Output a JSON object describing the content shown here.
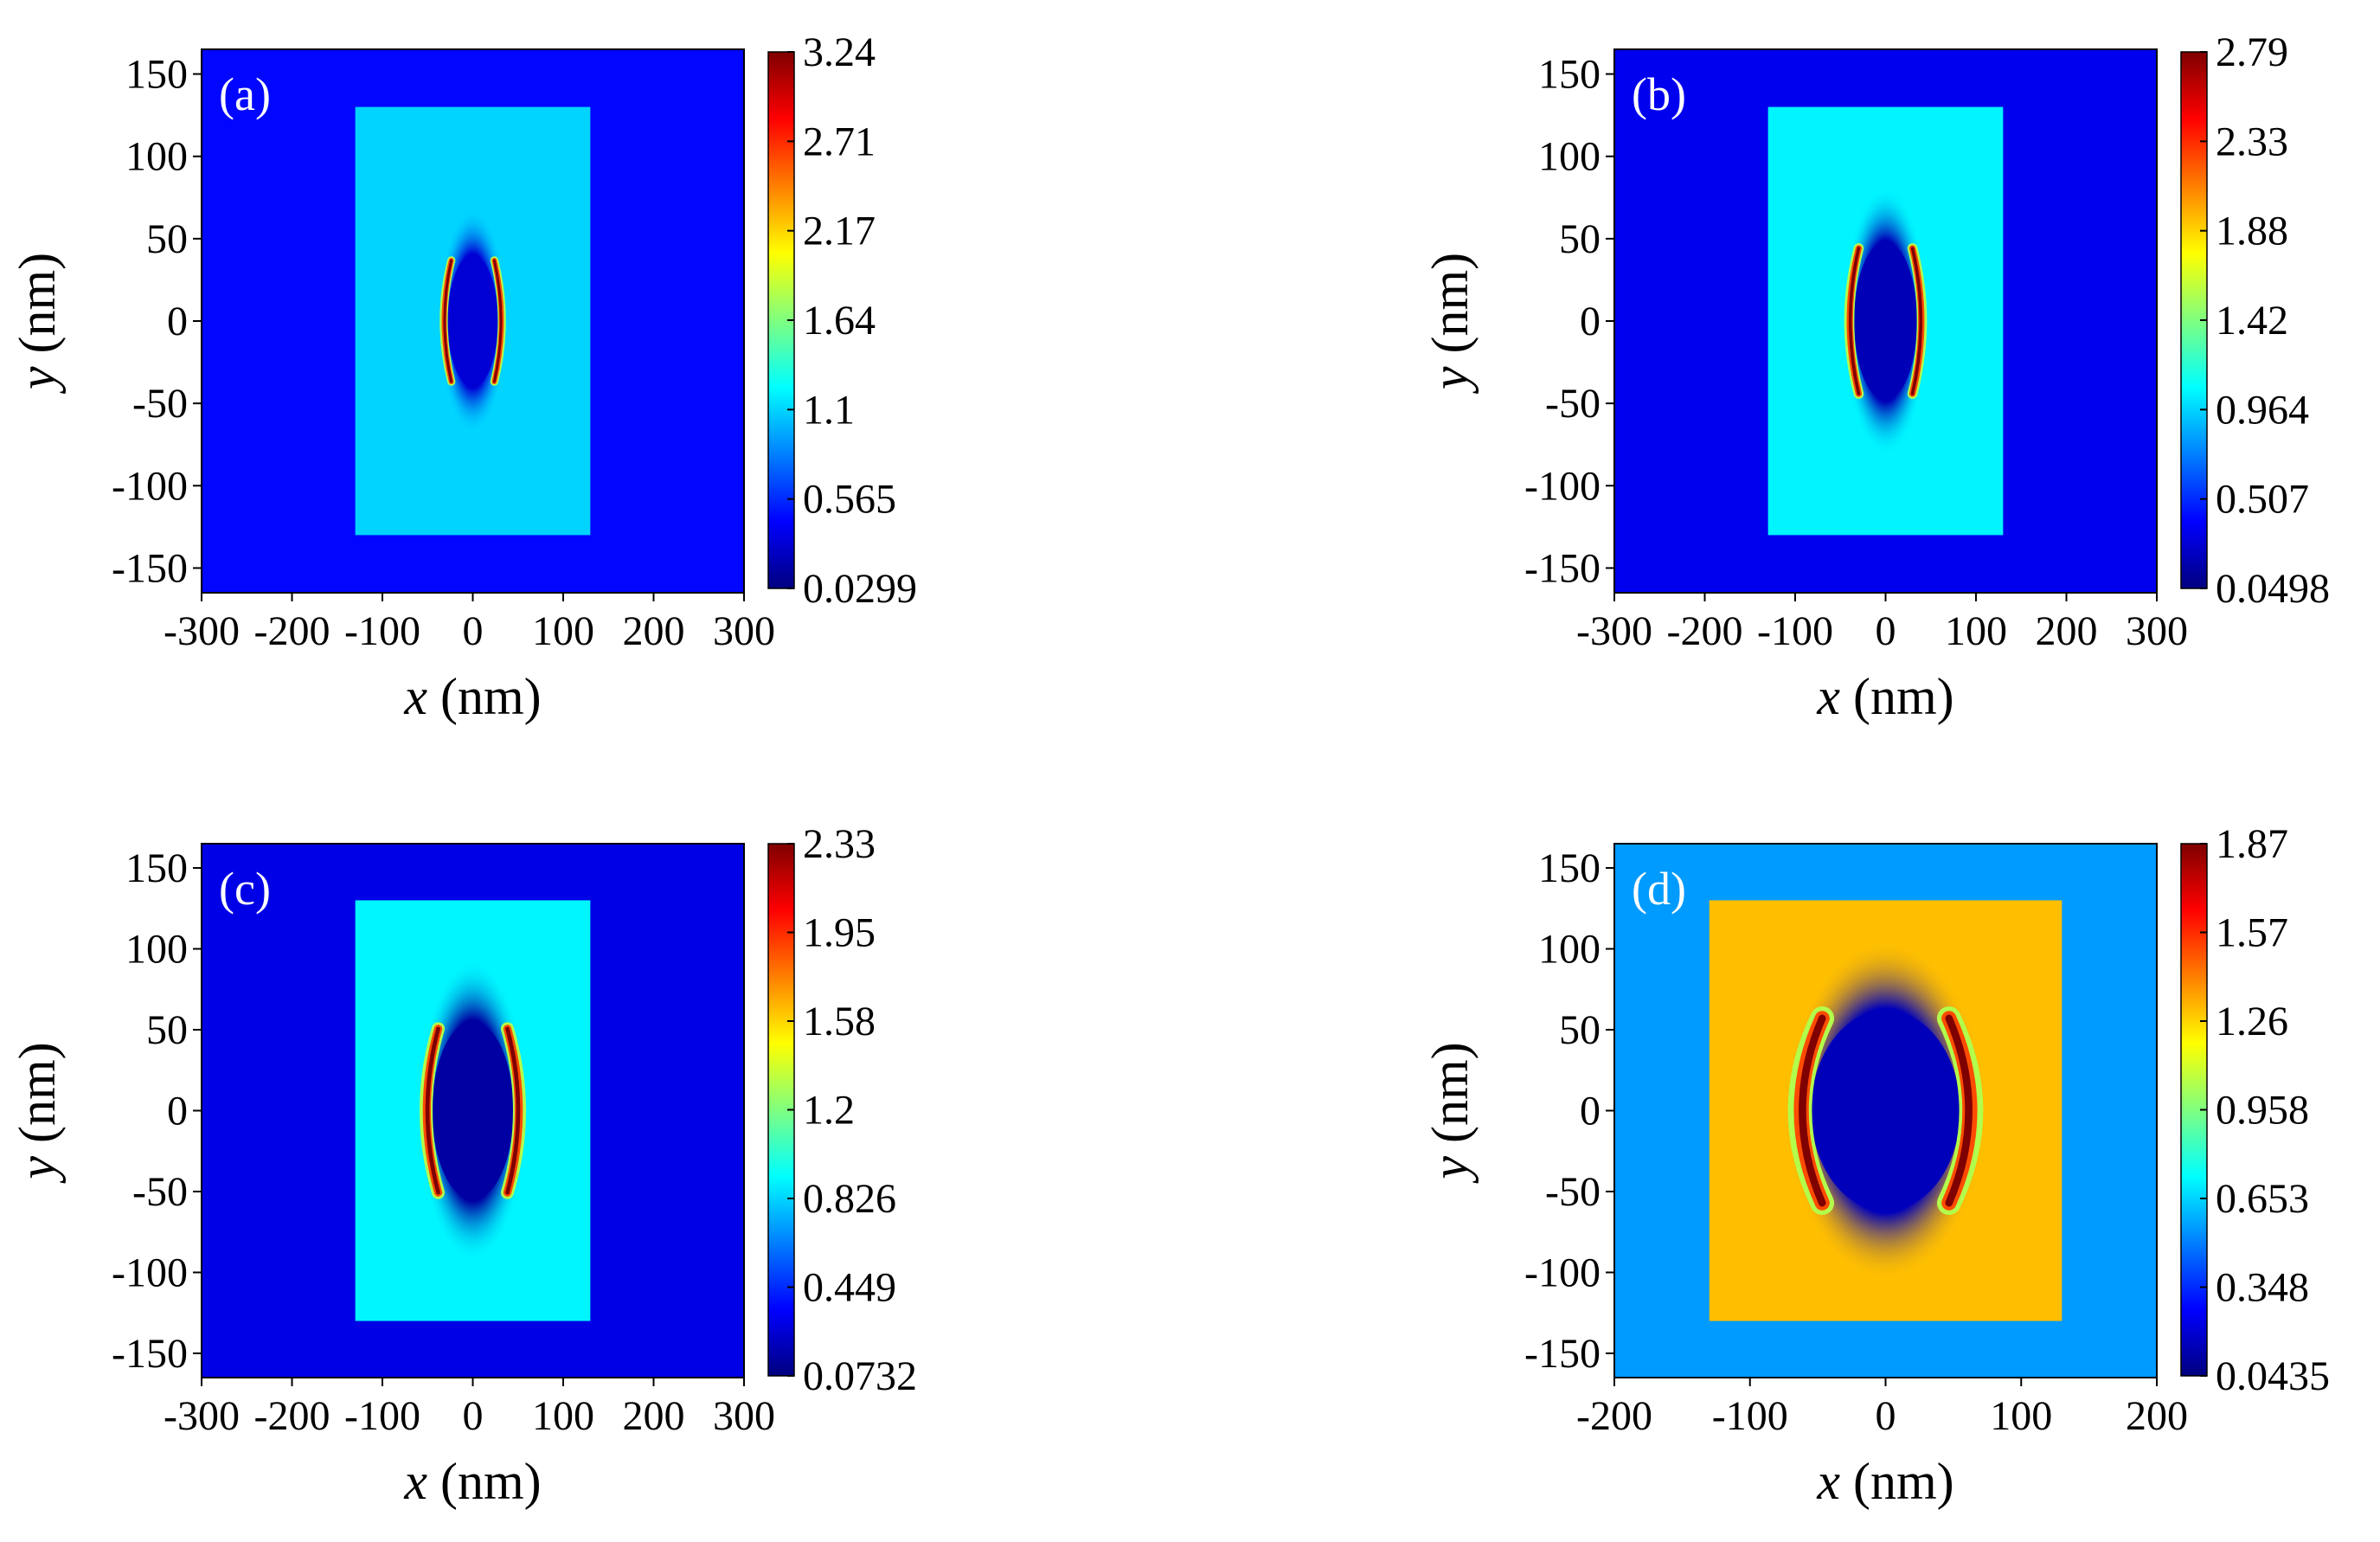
{
  "colors": {
    "background": "#ffffff",
    "colormap": [
      "#00007f",
      "#0000ff",
      "#007fff",
      "#00ffff",
      "#7fff7f",
      "#ffff00",
      "#ff7f00",
      "#ff0000",
      "#7f0000"
    ]
  },
  "chart_data": [
    {
      "type": "heatmap",
      "panel_label": "(a)",
      "xlabel_var": "x",
      "ylabel_var": "y",
      "unit": "(nm)",
      "xlim": [
        -300,
        300
      ],
      "ylim": [
        -165,
        165
      ],
      "xticks": [
        "-300",
        "-200",
        "-100",
        "0",
        "100",
        "200",
        "300"
      ],
      "xtick_values": [
        -300,
        -200,
        -100,
        0,
        100,
        200,
        300
      ],
      "yticks": [
        "150",
        "100",
        "50",
        "0",
        "-50",
        "-100",
        "-150"
      ],
      "ytick_values": [
        150,
        100,
        50,
        0,
        -50,
        -100,
        -150
      ],
      "colorbar_ticks": [
        "3.24",
        "2.71",
        "2.17",
        "1.64",
        "1.1",
        "0.565",
        "0.0299"
      ],
      "colorbar_range": [
        0.0299,
        3.24
      ],
      "rect_half_width": 130,
      "rect_half_height": 130,
      "hole_rx": 28,
      "hole_ry": 40,
      "outside_value": 0.45,
      "rect_value": 1.1,
      "hole_value": 0.3,
      "hotspot_value": 3.24
    },
    {
      "type": "heatmap",
      "panel_label": "(b)",
      "xlabel_var": "x",
      "ylabel_var": "y",
      "unit": "(nm)",
      "xlim": [
        -300,
        300
      ],
      "ylim": [
        -165,
        165
      ],
      "xticks": [
        "-300",
        "-200",
        "-100",
        "0",
        "100",
        "200",
        "300"
      ],
      "xtick_values": [
        -300,
        -200,
        -100,
        0,
        100,
        200,
        300
      ],
      "yticks": [
        "150",
        "100",
        "50",
        "0",
        "-50",
        "-100",
        "-150"
      ],
      "ytick_values": [
        150,
        100,
        50,
        0,
        -50,
        -100,
        -150
      ],
      "colorbar_ticks": [
        "2.79",
        "2.33",
        "1.88",
        "1.42",
        "0.964",
        "0.507",
        "0.0498"
      ],
      "colorbar_range": [
        0.0498,
        2.79
      ],
      "rect_half_width": 130,
      "rect_half_height": 130,
      "hole_rx": 35,
      "hole_ry": 48,
      "outside_value": 0.35,
      "rect_value": 1.05,
      "hole_value": 0.2,
      "hotspot_value": 2.79
    },
    {
      "type": "heatmap",
      "panel_label": "(c)",
      "xlabel_var": "x",
      "ylabel_var": "y",
      "unit": "(nm)",
      "xlim": [
        -300,
        300
      ],
      "ylim": [
        -165,
        165
      ],
      "xticks": [
        "-300",
        "-200",
        "-100",
        "0",
        "100",
        "200",
        "300"
      ],
      "xtick_values": [
        -300,
        -200,
        -100,
        0,
        100,
        200,
        300
      ],
      "yticks": [
        "150",
        "100",
        "50",
        "0",
        "-50",
        "-100",
        "-150"
      ],
      "ytick_values": [
        150,
        100,
        50,
        0,
        -50,
        -100,
        -150
      ],
      "colorbar_ticks": [
        "2.33",
        "1.95",
        "1.58",
        "1.2",
        "0.826",
        "0.449",
        "0.0732"
      ],
      "colorbar_range": [
        0.0732,
        2.33
      ],
      "rect_half_width": 130,
      "rect_half_height": 130,
      "hole_rx": 45,
      "hole_ry": 55,
      "outside_value": 0.3,
      "rect_value": 0.9,
      "hole_value": 0.15,
      "hotspot_value": 2.33
    },
    {
      "type": "heatmap",
      "panel_label": "(d)",
      "xlabel_var": "x",
      "ylabel_var": "y",
      "unit": "(nm)",
      "xlim": [
        -200,
        200
      ],
      "ylim": [
        -165,
        165
      ],
      "xticks": [
        "-200",
        "-100",
        "0",
        "100",
        "200"
      ],
      "xtick_values": [
        -200,
        -100,
        0,
        100,
        200
      ],
      "yticks": [
        "150",
        "100",
        "50",
        "0",
        "-50",
        "-100",
        "-150"
      ],
      "ytick_values": [
        150,
        100,
        50,
        0,
        -50,
        -100,
        -150
      ],
      "colorbar_ticks": [
        "1.87",
        "1.57",
        "1.26",
        "0.958",
        "0.653",
        "0.348",
        "0.0435"
      ],
      "colorbar_range": [
        0.0435,
        1.87
      ],
      "rect_half_width": 130,
      "rect_half_height": 130,
      "hole_rx": 55,
      "hole_ry": 62,
      "outside_value": 0.55,
      "rect_value": 1.3,
      "hole_value": 0.15,
      "hotspot_value": 1.87
    }
  ]
}
